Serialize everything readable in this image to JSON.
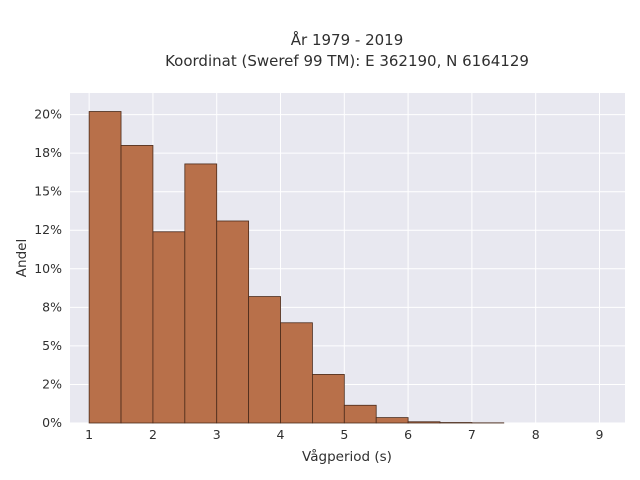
{
  "chart_data": {
    "type": "bar",
    "title_line1": "År 1979 - 2019",
    "title_line2": "Koordinat (Sweref 99 TM): E 362190, N 6164129",
    "xlabel": "Vågperiod (s)",
    "ylabel": "Andel",
    "bin_edges": [
      1.0,
      1.5,
      2.0,
      2.5,
      3.0,
      3.5,
      4.0,
      4.5,
      5.0,
      5.5,
      6.0,
      6.5,
      7.0,
      7.5
    ],
    "values": [
      20.2,
      18.0,
      12.4,
      16.8,
      13.1,
      8.2,
      6.5,
      3.15,
      1.15,
      0.35,
      0.08,
      0.03,
      0.01
    ],
    "xlim": [
      0.7,
      9.4
    ],
    "ylim": [
      0,
      21.4
    ],
    "x_ticks": [
      1,
      2,
      3,
      4,
      5,
      6,
      7,
      8,
      9
    ],
    "x_tick_labels": [
      "1",
      "2",
      "3",
      "4",
      "5",
      "6",
      "7",
      "8",
      "9"
    ],
    "y_ticks": [
      0,
      2.5,
      5,
      7.5,
      10,
      12.5,
      15,
      17.5,
      20
    ],
    "y_tick_labels": [
      "0%",
      "2%",
      "5%",
      "8%",
      "10%",
      "12%",
      "15%",
      "18%",
      "20%"
    ],
    "grid": true,
    "colors": {
      "bar_fill": "#b8704a",
      "bar_stroke": "#4a2a1a",
      "plot_bg": "#e8e8f0",
      "grid": "#ffffff"
    }
  }
}
